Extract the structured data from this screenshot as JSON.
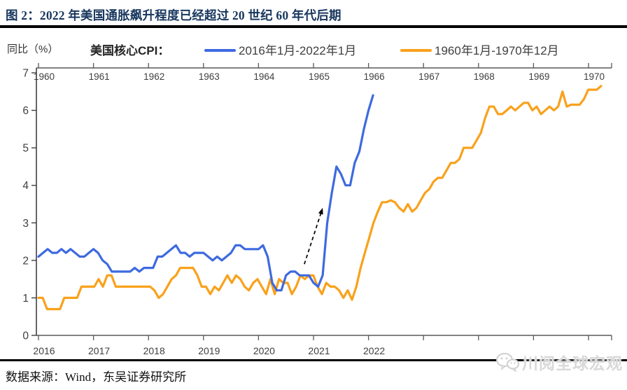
{
  "header": {
    "title": "图 2：2022 年美国通胀飙升程度已经超过 20 世纪 60 年代后期",
    "title_color": "#17365d"
  },
  "legend": {
    "unit_label": "同比（%）",
    "series_prefix": "美国核心CPI：",
    "items": [
      {
        "label": "2016年1月-2022年1月",
        "color": "#3e6ae1"
      },
      {
        "label": "1960年1月-1970年12月",
        "color": "#f9a11b"
      }
    ]
  },
  "footer": {
    "source": "数据来源：Wind，东吴证券研究所",
    "watermark_text": "川阅全球宏观",
    "watermark_icon": "wechat-icon"
  },
  "chart_data": {
    "type": "line",
    "title": "美国核心CPI同比（%）：2016-2022 对比 1960-1970",
    "ylabel": "同比（%）",
    "ylim": [
      0,
      7
    ],
    "y_ticks": [
      0,
      1,
      2,
      3,
      4,
      5,
      6,
      7
    ],
    "grid": false,
    "legend_position": "top",
    "x_axis_top": {
      "tick_labels": [
        "1960",
        "1961",
        "1962",
        "1963",
        "1964",
        "1965",
        "1966",
        "1967",
        "1968",
        "1969",
        "1970"
      ]
    },
    "x_axis_bottom": {
      "tick_labels": [
        "2016",
        "2017",
        "2018",
        "2019",
        "2020",
        "2021",
        "2022"
      ],
      "unlabeled_ticks": 4
    },
    "series": [
      {
        "name": "2016年1月-2022年1月",
        "color": "#3e6ae1",
        "start": "2016-01",
        "frequency": "monthly",
        "values": [
          2.1,
          2.2,
          2.3,
          2.2,
          2.2,
          2.3,
          2.2,
          2.3,
          2.2,
          2.1,
          2.1,
          2.2,
          2.3,
          2.2,
          2.0,
          1.9,
          1.7,
          1.7,
          1.7,
          1.7,
          1.7,
          1.8,
          1.7,
          1.8,
          1.8,
          1.8,
          2.1,
          2.1,
          2.2,
          2.3,
          2.4,
          2.2,
          2.2,
          2.1,
          2.2,
          2.2,
          2.2,
          2.1,
          2.0,
          2.1,
          2.0,
          2.1,
          2.2,
          2.4,
          2.4,
          2.3,
          2.3,
          2.3,
          2.3,
          2.4,
          2.1,
          1.4,
          1.2,
          1.2,
          1.6,
          1.7,
          1.7,
          1.6,
          1.6,
          1.6,
          1.4,
          1.3,
          1.6,
          3.0,
          3.8,
          4.5,
          4.3,
          4.0,
          4.0,
          4.6,
          4.9,
          5.5,
          6.0,
          6.4
        ]
      },
      {
        "name": "1960年1月-1970年12月",
        "color": "#f9a11b",
        "start": "1960-01",
        "frequency": "monthly",
        "values": [
          1.0,
          1.0,
          0.7,
          0.7,
          0.7,
          0.7,
          1.0,
          1.0,
          1.0,
          1.0,
          1.3,
          1.3,
          1.3,
          1.3,
          1.5,
          1.3,
          1.6,
          1.6,
          1.3,
          1.3,
          1.3,
          1.3,
          1.3,
          1.3,
          1.3,
          1.3,
          1.3,
          1.2,
          1.0,
          1.1,
          1.3,
          1.5,
          1.6,
          1.8,
          1.8,
          1.8,
          1.8,
          1.6,
          1.3,
          1.3,
          1.1,
          1.3,
          1.2,
          1.4,
          1.6,
          1.4,
          1.6,
          1.5,
          1.3,
          1.2,
          1.4,
          1.5,
          1.3,
          1.1,
          1.5,
          1.1,
          1.5,
          1.4,
          1.4,
          1.1,
          1.3,
          1.6,
          1.5,
          1.6,
          1.6,
          1.3,
          1.1,
          1.4,
          1.3,
          1.3,
          1.2,
          1.0,
          1.2,
          0.95,
          1.3,
          1.8,
          2.2,
          2.6,
          3.0,
          3.3,
          3.55,
          3.55,
          3.6,
          3.55,
          3.4,
          3.3,
          3.5,
          3.3,
          3.4,
          3.6,
          3.8,
          3.9,
          4.1,
          4.2,
          4.2,
          4.4,
          4.6,
          4.6,
          4.7,
          5.0,
          5.0,
          5.0,
          5.2,
          5.4,
          5.8,
          6.1,
          6.1,
          5.9,
          5.9,
          6.0,
          6.1,
          6.0,
          6.1,
          6.2,
          6.2,
          6.0,
          6.1,
          5.9,
          6.0,
          6.1,
          6.0,
          6.1,
          6.5,
          6.1,
          6.15,
          6.15,
          6.15,
          6.3,
          6.55,
          6.55,
          6.55,
          6.65
        ]
      }
    ],
    "annotations": [
      {
        "type": "arrow",
        "style": "dashed",
        "color": "#000000",
        "series": "2016年1月-2022年1月",
        "from": {
          "month_index": 58,
          "value": 1.9
        },
        "to": {
          "month_index": 62,
          "value": 3.4
        }
      }
    ]
  }
}
